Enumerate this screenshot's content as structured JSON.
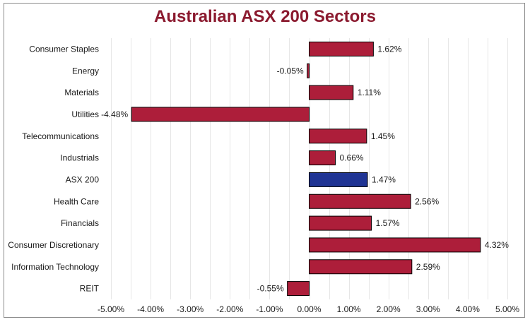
{
  "chart_data": {
    "type": "bar",
    "orientation": "horizontal",
    "title": "Australian ASX 200 Sectors",
    "xlabel": "",
    "ylabel": "",
    "xlim": [
      -5,
      5
    ],
    "x_tick_step": 1,
    "x_tick_format": "percent_2dp",
    "grid": true,
    "legend": "none",
    "colors": {
      "default": "#ad1e3a",
      "highlight": "#1f3494",
      "bar_border": "#000000",
      "grid": "#e6e6e6",
      "title": "#8b1a2f"
    },
    "highlight_category": "ASX 200",
    "categories": [
      "Consumer Staples",
      "Energy",
      "Materials",
      "Utilities",
      "Telecommunications",
      "Industrials",
      "ASX 200",
      "Health Care",
      "Financials",
      "Consumer Discretionary",
      "Information Technology",
      "REIT"
    ],
    "values": [
      1.62,
      -0.05,
      1.11,
      -4.48,
      1.45,
      0.66,
      1.47,
      2.56,
      1.57,
      4.32,
      2.59,
      -0.55
    ],
    "data_labels": [
      "1.62%",
      "-0.05%",
      "1.11%",
      "-4.48%",
      "1.45%",
      "0.66%",
      "1.47%",
      "2.56%",
      "1.57%",
      "4.32%",
      "2.59%",
      "-0.55%"
    ],
    "tick_labels": [
      "-5.00%",
      "-4.00%",
      "-3.00%",
      "-2.00%",
      "-1.00%",
      "0.00%",
      "1.00%",
      "2.00%",
      "3.00%",
      "4.00%",
      "5.00%"
    ]
  }
}
